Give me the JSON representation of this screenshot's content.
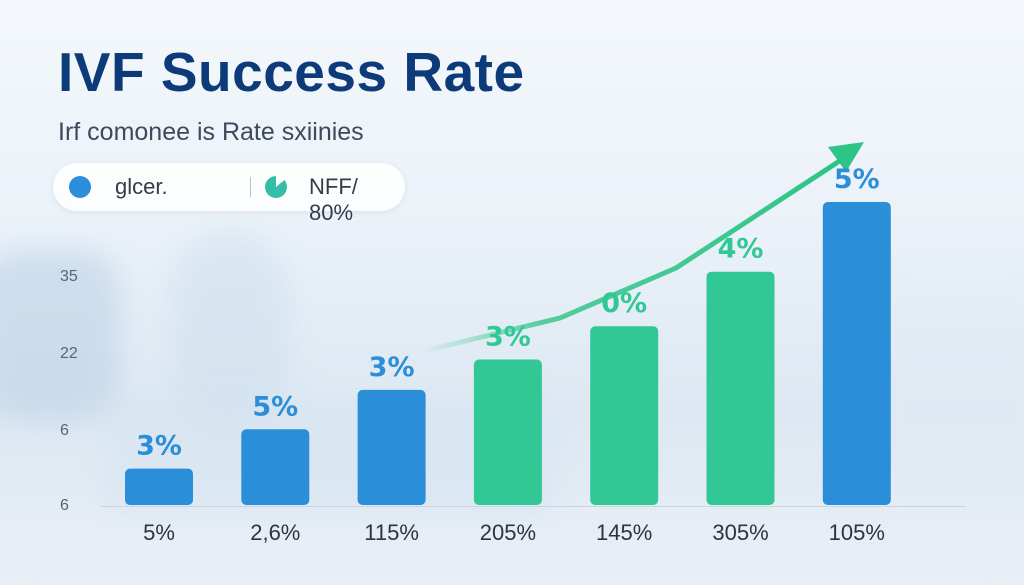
{
  "chart_data": {
    "type": "bar",
    "title": "IVF Success Rate",
    "subtitle": "Irf comonee is Rate sxiinies",
    "legend": [
      {
        "label": "glcer.",
        "icon": "circle-icon",
        "color": "#2a8ed8"
      },
      {
        "label": "NFF/ 80%",
        "icon": "pie-icon",
        "color": "#32bfa6"
      }
    ],
    "y_ticks": [
      "35",
      "22",
      "6",
      "6"
    ],
    "categories": [
      "5%",
      "2,6%",
      "115%",
      "205%",
      "145%",
      "305%",
      "105%"
    ],
    "value_labels": [
      "3%",
      "5%",
      "3%",
      "3%",
      "0%",
      "4%",
      "5%"
    ],
    "bar_heights_relative": [
      0.12,
      0.25,
      0.38,
      0.48,
      0.59,
      0.77,
      1.0
    ],
    "bar_colors": [
      "#2a8ed8",
      "#2a8ed8",
      "#2a8ed8",
      "#32c896",
      "#32c896",
      "#32c896",
      "#2a8ed8"
    ],
    "trend_arrow_color": "#2ec486",
    "grid": false,
    "legend_position": "top-left"
  }
}
